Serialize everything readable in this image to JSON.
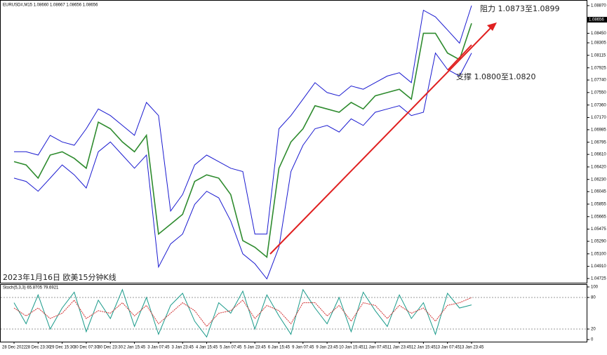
{
  "chart_data": [
    {
      "type": "line",
      "title": "EURUSD#,M15  1.08660 1.08667 1.08656 1.08656",
      "annotations": [
        "阻力 1.0873至1.0899",
        "支撑 1.0800至1.0820",
        "2023年1月16日 欧美15分钟K线"
      ],
      "categories": [
        "28 Dec 2022",
        null,
        "28 Dec 23:30",
        null,
        "29 Dec 15:30",
        null,
        "30 Dec 07:30",
        null,
        "30 Dec 23:30",
        null,
        "2 Jan 15:45",
        null,
        "3 Jan 07:45",
        null,
        "3 Jan 23:45",
        null,
        "4 Jan 15:45",
        null,
        "5 Jan 07:45",
        null,
        "5 Jan 23:45",
        null,
        "6 Jan 15:45",
        null,
        "9 Jan 07:45",
        null,
        "9 Jan 23:45",
        null,
        "10 Jan 15:45",
        null,
        "11 Jan 07:45",
        null,
        "11 Jan 23:45",
        null,
        "12 Jan 15:45",
        null,
        "13 Jan 07:45",
        null,
        "13 Jan 23:45"
      ],
      "series": [
        {
          "color": "#2e8b2e",
          "values": [
            1.065,
            1.0645,
            1.0625,
            1.066,
            1.0665,
            1.0655,
            1.064,
            1.071,
            1.07,
            1.068,
            1.0665,
            1.069,
            1.054,
            1.0555,
            1.057,
            1.062,
            1.063,
            1.0625,
            1.06,
            1.053,
            1.052,
            1.0505,
            1.064,
            1.068,
            1.07,
            1.0735,
            1.073,
            1.0725,
            1.074,
            1.073,
            1.075,
            1.0755,
            1.076,
            1.0745,
            1.0845,
            1.0845,
            1.0815,
            1.0805,
            1.086
          ]
        },
        {
          "color": "#1a1ad0",
          "values": [
            1.0665,
            1.0665,
            1.066,
            1.069,
            1.068,
            1.0675,
            1.07,
            1.073,
            1.072,
            1.0705,
            1.069,
            1.074,
            1.072,
            1.0575,
            1.06,
            1.0645,
            1.066,
            1.065,
            1.064,
            1.0635,
            1.054,
            1.054,
            1.07,
            1.072,
            1.0745,
            1.077,
            1.0755,
            1.075,
            1.0765,
            1.076,
            1.077,
            1.078,
            1.0785,
            1.077,
            1.088,
            1.087,
            1.085,
            1.083,
            1.0887
          ]
        },
        {
          "color": "#1a1ad0",
          "values": [
            1.0625,
            1.062,
            1.0605,
            1.0625,
            1.0645,
            1.063,
            1.061,
            1.0665,
            1.068,
            1.066,
            1.064,
            1.066,
            1.049,
            1.0525,
            1.054,
            1.0585,
            1.0605,
            1.0595,
            1.056,
            1.051,
            1.0495,
            1.0472,
            1.052,
            1.0635,
            1.0675,
            1.07,
            1.0705,
            1.0695,
            1.0715,
            1.0705,
            1.0725,
            1.073,
            1.0735,
            1.072,
            1.0725,
            1.0815,
            1.079,
            1.078,
            1.0815
          ]
        }
      ],
      "current_price": {
        "value": 1.08656,
        "label": "1.08656"
      },
      "ylim": [
        1.04661,
        1.08934
      ],
      "yticks": [
        {
          "value": 1.0887,
          "label": "1.08870"
        },
        {
          "value": 1.0845,
          "label": "1.08450"
        },
        {
          "value": 1.08305,
          "label": "1.08305"
        },
        {
          "value": 1.08115,
          "label": "1.08115"
        },
        {
          "value": 1.07925,
          "label": "1.07925"
        },
        {
          "value": 1.0774,
          "label": "1.07740"
        },
        {
          "value": 1.0755,
          "label": "1.07550"
        },
        {
          "value": 1.0736,
          "label": "1.07360"
        },
        {
          "value": 1.0717,
          "label": "1.07170"
        },
        {
          "value": 1.06985,
          "label": "1.06985"
        },
        {
          "value": 1.06795,
          "label": "1.06795"
        },
        {
          "value": 1.0661,
          "label": "1.06610"
        },
        {
          "value": 1.0642,
          "label": "1.06420"
        },
        {
          "value": 1.0623,
          "label": "1.06230"
        },
        {
          "value": 1.06045,
          "label": "1.06045"
        },
        {
          "value": 1.05855,
          "label": "1.05855"
        },
        {
          "value": 1.05665,
          "label": "1.05665"
        },
        {
          "value": 1.05475,
          "label": "1.05475"
        },
        {
          "value": 1.0529,
          "label": "1.05290"
        },
        {
          "value": 1.051,
          "label": "1.05100"
        },
        {
          "value": 1.0491,
          "label": "1.04910"
        },
        {
          "value": 1.04725,
          "label": "1.04725"
        }
      ]
    },
    {
      "type": "line",
      "title": "Stoch(5,3,3) 65.8705 79.6921",
      "series": [
        {
          "color": "#1a9a8a",
          "values": [
            70,
            30,
            85,
            20,
            60,
            90,
            15,
            75,
            40,
            95,
            25,
            80,
            10,
            65,
            88,
            35,
            5,
            70,
            50,
            92,
            20,
            85,
            45,
            10,
            95,
            60,
            30,
            80,
            15,
            90,
            55,
            25,
            85,
            40,
            70,
            10,
            88,
            60,
            65.8705
          ]
        },
        {
          "color": "#d03030",
          "values": [
            60,
            45,
            60,
            40,
            50,
            75,
            40,
            55,
            50,
            70,
            45,
            65,
            30,
            50,
            70,
            55,
            25,
            50,
            55,
            75,
            40,
            65,
            55,
            30,
            70,
            70,
            45,
            65,
            35,
            70,
            65,
            40,
            65,
            50,
            60,
            35,
            65,
            70,
            79.6921
          ]
        }
      ],
      "ylim": [
        0,
        100
      ],
      "yticks": [
        100,
        80,
        20,
        0
      ]
    }
  ]
}
